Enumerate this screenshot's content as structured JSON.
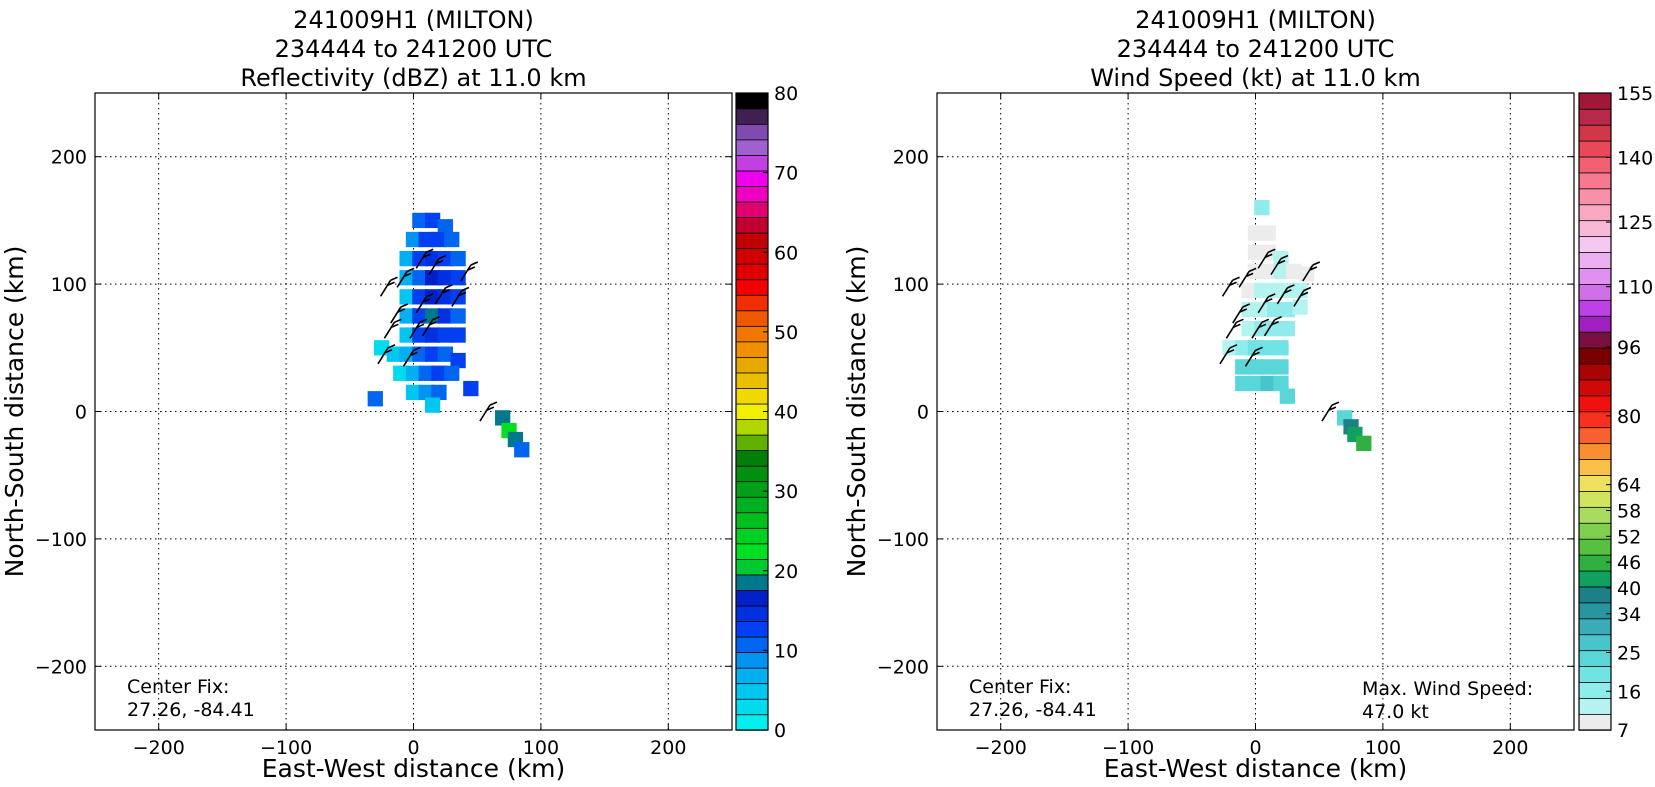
{
  "chart_data": [
    {
      "type": "heatmap",
      "title_lines": [
        "241009H1 (MILTON)",
        "234444 to 241200 UTC",
        "Reflectivity (dBZ) at 11.0 km"
      ],
      "xlabel": "East-West distance (km)",
      "ylabel": "North-South distance (km)",
      "xlim": [
        -250,
        250
      ],
      "ylim": [
        -250,
        250
      ],
      "xticks": [
        -200,
        -100,
        0,
        100,
        200
      ],
      "yticks": [
        -200,
        -100,
        0,
        100,
        200
      ],
      "xtick_labels": [
        "−200",
        "−100",
        "0",
        "100",
        "200"
      ],
      "ytick_labels": [
        "−200",
        "−100",
        "0",
        "100",
        "200"
      ],
      "grid": true,
      "annotation_lines": [
        "Center Fix:",
        "27.26, -84.41"
      ],
      "colorbar": {
        "ticks": [
          0,
          10,
          20,
          30,
          40,
          50,
          60,
          70,
          80
        ],
        "tick_labels": [
          "0",
          "10",
          "20",
          "30",
          "40",
          "50",
          "60",
          "70",
          "80"
        ],
        "colors": [
          "#00f0f0",
          "#00dcee",
          "#00c6f0",
          "#00b0f0",
          "#0094f0",
          "#0066f0",
          "#0040f0",
          "#0030e0",
          "#0020c8",
          "#00788c",
          "#00c830",
          "#00e020",
          "#00d020",
          "#00c020",
          "#00b020",
          "#00a018",
          "#009010",
          "#008008",
          "#60b000",
          "#b0d800",
          "#f0f000",
          "#f0d800",
          "#e8c000",
          "#e8a800",
          "#f09000",
          "#f07800",
          "#f05800",
          "#f03000",
          "#f00000",
          "#e00000",
          "#d00000",
          "#c00000",
          "#c00030",
          "#e00070",
          "#f000c0",
          "#f000f0",
          "#c040e0",
          "#a060d0",
          "#804ab0",
          "#402050",
          "#000000"
        ]
      },
      "cells": [
        {
          "x": 5,
          "y": 150,
          "v": 10
        },
        {
          "x": 15,
          "y": 150,
          "v": 12
        },
        {
          "x": 25,
          "y": 145,
          "v": 11
        },
        {
          "x": 0,
          "y": 135,
          "v": 9
        },
        {
          "x": 10,
          "y": 135,
          "v": 13
        },
        {
          "x": 20,
          "y": 135,
          "v": 12
        },
        {
          "x": 30,
          "y": 135,
          "v": 10
        },
        {
          "x": -5,
          "y": 120,
          "v": 7
        },
        {
          "x": 5,
          "y": 120,
          "v": 12
        },
        {
          "x": 15,
          "y": 120,
          "v": 14
        },
        {
          "x": 25,
          "y": 120,
          "v": 13
        },
        {
          "x": 35,
          "y": 120,
          "v": 11
        },
        {
          "x": -5,
          "y": 105,
          "v": 6
        },
        {
          "x": 5,
          "y": 105,
          "v": 11
        },
        {
          "x": 15,
          "y": 105,
          "v": 16
        },
        {
          "x": 25,
          "y": 105,
          "v": 14
        },
        {
          "x": 35,
          "y": 105,
          "v": 12
        },
        {
          "x": -5,
          "y": 90,
          "v": 5
        },
        {
          "x": 5,
          "y": 90,
          "v": 12
        },
        {
          "x": 15,
          "y": 90,
          "v": 17
        },
        {
          "x": 25,
          "y": 90,
          "v": 15
        },
        {
          "x": 35,
          "y": 90,
          "v": 12
        },
        {
          "x": -5,
          "y": 75,
          "v": 6
        },
        {
          "x": 5,
          "y": 75,
          "v": 13
        },
        {
          "x": 15,
          "y": 75,
          "v": 18
        },
        {
          "x": 25,
          "y": 75,
          "v": 14
        },
        {
          "x": 35,
          "y": 75,
          "v": 11
        },
        {
          "x": -5,
          "y": 60,
          "v": 5
        },
        {
          "x": 5,
          "y": 60,
          "v": 12
        },
        {
          "x": 15,
          "y": 60,
          "v": 14
        },
        {
          "x": 25,
          "y": 60,
          "v": 13
        },
        {
          "x": 35,
          "y": 60,
          "v": 12
        },
        {
          "x": -25,
          "y": 50,
          "v": 3
        },
        {
          "x": -15,
          "y": 45,
          "v": 4
        },
        {
          "x": -5,
          "y": 45,
          "v": 6
        },
        {
          "x": 5,
          "y": 45,
          "v": 11
        },
        {
          "x": 15,
          "y": 45,
          "v": 12
        },
        {
          "x": 25,
          "y": 45,
          "v": 11
        },
        {
          "x": 35,
          "y": 40,
          "v": 12
        },
        {
          "x": -10,
          "y": 30,
          "v": 3
        },
        {
          "x": 0,
          "y": 30,
          "v": 7
        },
        {
          "x": 10,
          "y": 30,
          "v": 10
        },
        {
          "x": 20,
          "y": 30,
          "v": 12
        },
        {
          "x": 30,
          "y": 30,
          "v": 11
        },
        {
          "x": 0,
          "y": 15,
          "v": 5
        },
        {
          "x": 10,
          "y": 15,
          "v": 8
        },
        {
          "x": 20,
          "y": 15,
          "v": 11
        },
        {
          "x": 15,
          "y": 5,
          "v": 4
        },
        {
          "x": 45,
          "y": 18,
          "v": 12
        },
        {
          "x": -30,
          "y": 10,
          "v": 11
        },
        {
          "x": 70,
          "y": -5,
          "v": 18
        },
        {
          "x": 75,
          "y": -15,
          "v": 22
        },
        {
          "x": 80,
          "y": -22,
          "v": 18
        },
        {
          "x": 85,
          "y": -30,
          "v": 11
        }
      ],
      "barbs": [
        {
          "x": -18,
          "y": 103
        },
        {
          "x": -5,
          "y": 110
        },
        {
          "x": 10,
          "y": 125
        },
        {
          "x": 20,
          "y": 120
        },
        {
          "x": 45,
          "y": 115
        },
        {
          "x": -10,
          "y": 82
        },
        {
          "x": 10,
          "y": 90
        },
        {
          "x": 25,
          "y": 97
        },
        {
          "x": 38,
          "y": 95
        },
        {
          "x": -15,
          "y": 70
        },
        {
          "x": 5,
          "y": 70
        },
        {
          "x": 15,
          "y": 72
        },
        {
          "x": -20,
          "y": 50
        },
        {
          "x": 0,
          "y": 48
        },
        {
          "x": 60,
          "y": 5
        }
      ]
    },
    {
      "type": "heatmap",
      "title_lines": [
        "241009H1 (MILTON)",
        "234444 to 241200 UTC",
        "Wind Speed (kt) at 11.0 km"
      ],
      "xlabel": "East-West distance (km)",
      "ylabel": "North-South distance (km)",
      "xlim": [
        -250,
        250
      ],
      "ylim": [
        -250,
        250
      ],
      "xticks": [
        -200,
        -100,
        0,
        100,
        200
      ],
      "yticks": [
        -200,
        -100,
        0,
        100,
        200
      ],
      "xtick_labels": [
        "−200",
        "−100",
        "0",
        "100",
        "200"
      ],
      "ytick_labels": [
        "−200",
        "−100",
        "0",
        "100",
        "200"
      ],
      "grid": true,
      "annotation_lines": [
        "Center Fix:",
        "27.26, -84.41"
      ],
      "annotation2_lines": [
        "Max. Wind Speed:",
        "47.0 kt"
      ],
      "colorbar": {
        "ticks": [
          7,
          16,
          25,
          34,
          40,
          46,
          52,
          58,
          64,
          80,
          96,
          110,
          125,
          140,
          155
        ],
        "tick_labels": [
          "7",
          "16",
          "25",
          "34",
          "40",
          "46",
          "52",
          "58",
          "64",
          "80",
          "96",
          "110",
          "125",
          "140",
          "155"
        ],
        "colors": [
          "#ececec",
          "#b4f4f0",
          "#90ecec",
          "#70e4e4",
          "#58d6d8",
          "#48c4cc",
          "#38acb8",
          "#28969e",
          "#1c8088",
          "#10a060",
          "#30b040",
          "#58c040",
          "#80d050",
          "#a8dc60",
          "#d0e460",
          "#f0e060",
          "#f8c048",
          "#f89030",
          "#f86030",
          "#f83020",
          "#f01010",
          "#d00808",
          "#a80404",
          "#780000",
          "#7a1040",
          "#a020c0",
          "#c040e8",
          "#d070e8",
          "#e090f0",
          "#ecb0f0",
          "#f4c8f0",
          "#f8b8d8",
          "#f8a8c0",
          "#f890a8",
          "#f87890",
          "#f06070",
          "#e84858",
          "#d03848",
          "#b82848",
          "#a01838"
        ]
      },
      "cells": [
        {
          "x": 5,
          "y": 160,
          "v": 16
        },
        {
          "x": 0,
          "y": 140,
          "v": 7
        },
        {
          "x": 10,
          "y": 140,
          "v": 7
        },
        {
          "x": 0,
          "y": 125,
          "v": 7
        },
        {
          "x": 10,
          "y": 125,
          "v": 7
        },
        {
          "x": 20,
          "y": 120,
          "v": 12
        },
        {
          "x": 0,
          "y": 110,
          "v": 8
        },
        {
          "x": 10,
          "y": 110,
          "v": 9
        },
        {
          "x": 20,
          "y": 110,
          "v": 11
        },
        {
          "x": 30,
          "y": 110,
          "v": 7
        },
        {
          "x": 40,
          "y": 108,
          "v": 7
        },
        {
          "x": -5,
          "y": 95,
          "v": 10
        },
        {
          "x": 5,
          "y": 95,
          "v": 12
        },
        {
          "x": 15,
          "y": 95,
          "v": 14
        },
        {
          "x": 25,
          "y": 95,
          "v": 13
        },
        {
          "x": 35,
          "y": 95,
          "v": 12
        },
        {
          "x": -5,
          "y": 80,
          "v": 12
        },
        {
          "x": 5,
          "y": 80,
          "v": 14
        },
        {
          "x": 15,
          "y": 80,
          "v": 16
        },
        {
          "x": 25,
          "y": 80,
          "v": 15
        },
        {
          "x": 35,
          "y": 82,
          "v": 14
        },
        {
          "x": -5,
          "y": 65,
          "v": 14
        },
        {
          "x": 5,
          "y": 65,
          "v": 16
        },
        {
          "x": 15,
          "y": 65,
          "v": 17
        },
        {
          "x": 25,
          "y": 65,
          "v": 18
        },
        {
          "x": -20,
          "y": 50,
          "v": 14
        },
        {
          "x": -10,
          "y": 50,
          "v": 17
        },
        {
          "x": 0,
          "y": 50,
          "v": 19
        },
        {
          "x": 10,
          "y": 50,
          "v": 21
        },
        {
          "x": 20,
          "y": 50,
          "v": 20
        },
        {
          "x": -10,
          "y": 35,
          "v": 22
        },
        {
          "x": 0,
          "y": 35,
          "v": 23
        },
        {
          "x": 10,
          "y": 35,
          "v": 24
        },
        {
          "x": 20,
          "y": 35,
          "v": 22
        },
        {
          "x": -10,
          "y": 22,
          "v": 24
        },
        {
          "x": 0,
          "y": 22,
          "v": 25
        },
        {
          "x": 10,
          "y": 22,
          "v": 26
        },
        {
          "x": 20,
          "y": 22,
          "v": 24
        },
        {
          "x": 25,
          "y": 12,
          "v": 24
        },
        {
          "x": 70,
          "y": -5,
          "v": 24
        },
        {
          "x": 75,
          "y": -12,
          "v": 40
        },
        {
          "x": 78,
          "y": -18,
          "v": 42
        },
        {
          "x": 85,
          "y": -25,
          "v": 44
        }
      ],
      "barbs": [
        {
          "x": -18,
          "y": 103
        },
        {
          "x": -5,
          "y": 110
        },
        {
          "x": 10,
          "y": 125
        },
        {
          "x": 20,
          "y": 120
        },
        {
          "x": 45,
          "y": 115
        },
        {
          "x": -10,
          "y": 82
        },
        {
          "x": 10,
          "y": 90
        },
        {
          "x": 25,
          "y": 97
        },
        {
          "x": 38,
          "y": 95
        },
        {
          "x": -15,
          "y": 70
        },
        {
          "x": 5,
          "y": 70
        },
        {
          "x": 15,
          "y": 72
        },
        {
          "x": -20,
          "y": 50
        },
        {
          "x": 0,
          "y": 48
        },
        {
          "x": 60,
          "y": 5
        }
      ]
    }
  ]
}
